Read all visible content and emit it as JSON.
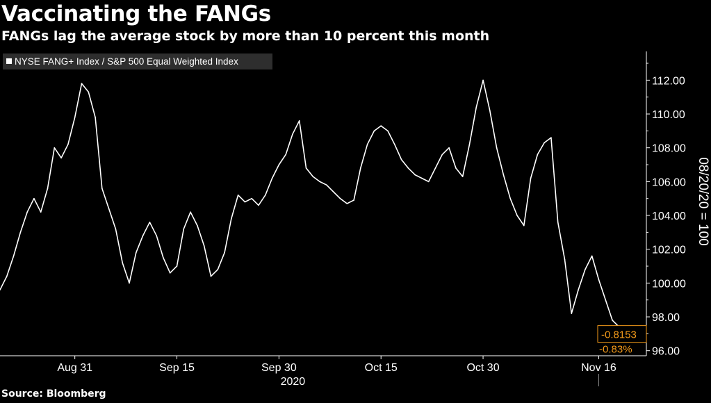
{
  "header": {
    "title": "Vaccinating the FANGs",
    "subtitle": "FANGs lag the average stock by more than 10 percent this month"
  },
  "footer": {
    "source": "Source: Bloomberg"
  },
  "colors": {
    "background": "#000000",
    "line": "#ffffff",
    "accent": "#f39a1a",
    "axis": "#ffffff"
  },
  "chart_data": {
    "type": "line",
    "title": "Vaccinating the FANGs",
    "subtitle": "FANGs lag the average stock by more than 10 percent this month",
    "ylabel": "08/20/20 = 100",
    "ylim": [
      95.7,
      113.7
    ],
    "y_ticks": [
      "96.00",
      "98.00",
      "100.00",
      "102.00",
      "104.00",
      "106.00",
      "108.00",
      "110.00",
      "112.00"
    ],
    "y_tick_values": [
      96,
      98,
      100,
      102,
      104,
      106,
      108,
      110,
      112
    ],
    "x_ticks": [
      "Aug 31",
      "Sep 15",
      "Sep 30",
      "Oct 15",
      "Oct 30",
      "Nov 16"
    ],
    "x_tick_dates": [
      "2020-08-31",
      "2020-09-15",
      "2020-09-30",
      "2020-10-15",
      "2020-10-30",
      "2020-11-16"
    ],
    "x_year_label": "2020",
    "xlim": [
      "2020-08-20",
      "2020-11-23"
    ],
    "grid": false,
    "legend": {
      "position": "top-left",
      "entries": [
        "NYSE FANG+ Index / S&P 500 Equal Weighted Index"
      ]
    },
    "end_labels": {
      "value": "-0.8153",
      "percent": "-0.83%"
    },
    "series": [
      {
        "name": "NYSE FANG+ Index / S&P 500 Equal Weighted Index",
        "color": "#ffffff",
        "x": [
          "2020-08-20",
          "2020-08-21",
          "2020-08-22",
          "2020-08-23",
          "2020-08-24",
          "2020-08-25",
          "2020-08-26",
          "2020-08-27",
          "2020-08-28",
          "2020-08-29",
          "2020-08-30",
          "2020-08-31",
          "2020-09-01",
          "2020-09-02",
          "2020-09-03",
          "2020-09-04",
          "2020-09-05",
          "2020-09-06",
          "2020-09-07",
          "2020-09-08",
          "2020-09-09",
          "2020-09-10",
          "2020-09-11",
          "2020-09-12",
          "2020-09-13",
          "2020-09-14",
          "2020-09-15",
          "2020-09-16",
          "2020-09-17",
          "2020-09-18",
          "2020-09-19",
          "2020-09-20",
          "2020-09-21",
          "2020-09-22",
          "2020-09-23",
          "2020-09-24",
          "2020-09-25",
          "2020-09-26",
          "2020-09-27",
          "2020-09-28",
          "2020-09-29",
          "2020-09-30",
          "2020-10-01",
          "2020-10-02",
          "2020-10-03",
          "2020-10-04",
          "2020-10-05",
          "2020-10-06",
          "2020-10-07",
          "2020-10-08",
          "2020-10-09",
          "2020-10-10",
          "2020-10-11",
          "2020-10-12",
          "2020-10-13",
          "2020-10-14",
          "2020-10-15",
          "2020-10-16",
          "2020-10-17",
          "2020-10-18",
          "2020-10-19",
          "2020-10-20",
          "2020-10-21",
          "2020-10-22",
          "2020-10-23",
          "2020-10-24",
          "2020-10-25",
          "2020-10-26",
          "2020-10-27",
          "2020-10-28",
          "2020-10-29",
          "2020-10-30",
          "2020-10-31",
          "2020-11-01",
          "2020-11-02",
          "2020-11-03",
          "2020-11-04",
          "2020-11-05",
          "2020-11-06",
          "2020-11-07",
          "2020-11-08",
          "2020-11-09",
          "2020-11-10",
          "2020-11-11",
          "2020-11-12",
          "2020-11-13",
          "2020-11-14",
          "2020-11-15",
          "2020-11-16",
          "2020-11-17",
          "2020-11-18",
          "2020-11-19"
        ],
        "values": [
          99.6,
          100.4,
          101.6,
          103.0,
          104.2,
          105.0,
          104.2,
          105.6,
          108.0,
          107.4,
          108.2,
          109.8,
          111.8,
          111.3,
          109.8,
          105.6,
          104.4,
          103.2,
          101.2,
          100.0,
          101.8,
          102.8,
          103.6,
          102.8,
          101.5,
          100.6,
          101.0,
          103.2,
          104.2,
          103.4,
          102.2,
          100.4,
          100.8,
          101.8,
          103.8,
          105.2,
          104.8,
          105.0,
          104.6,
          105.2,
          106.2,
          107.0,
          107.6,
          108.8,
          109.6,
          106.8,
          106.3,
          106.0,
          105.8,
          105.4,
          105.0,
          104.7,
          104.9,
          106.8,
          108.2,
          109.0,
          109.3,
          109.0,
          108.2,
          107.3,
          106.8,
          106.4,
          106.2,
          106.0,
          106.8,
          107.6,
          108.0,
          106.8,
          106.3,
          108.2,
          110.4,
          112.0,
          110.2,
          108.0,
          106.4,
          105.0,
          104.0,
          103.4,
          106.2,
          107.6,
          108.3,
          108.6,
          103.6,
          101.4,
          98.2,
          99.6,
          100.8,
          101.6,
          100.2,
          99.0,
          97.8,
          97.4
        ]
      }
    ]
  }
}
